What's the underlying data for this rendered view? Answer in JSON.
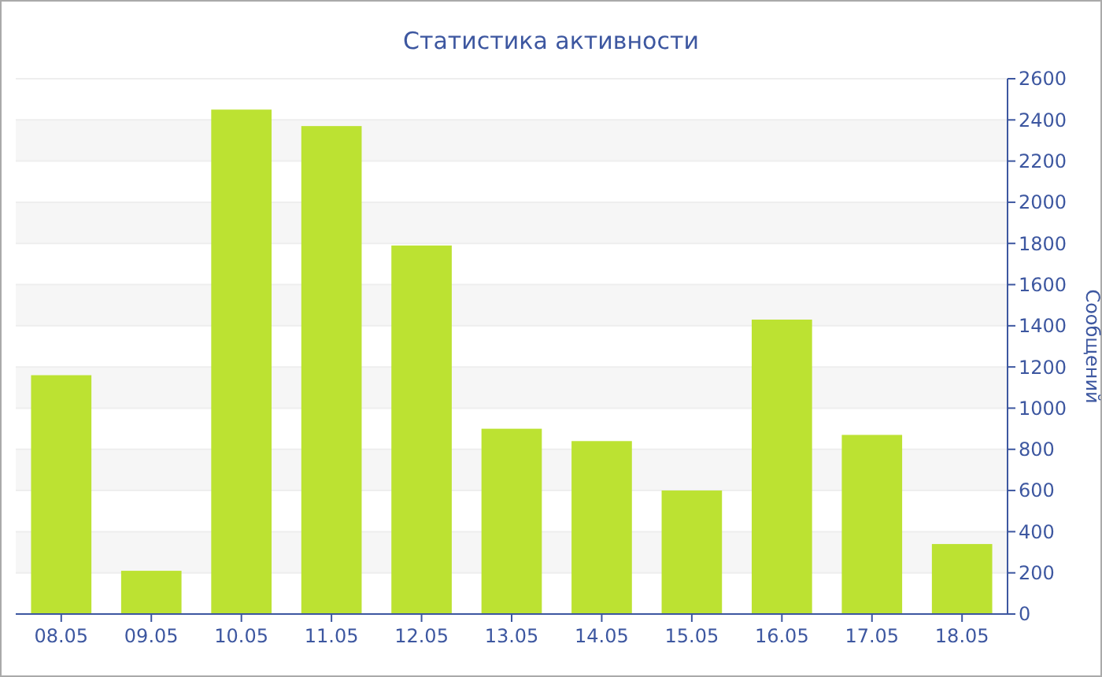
{
  "chart_data": {
    "type": "bar",
    "title": "Статистика активности",
    "ylabel": "Сообщений",
    "categories": [
      "08.05",
      "09.05",
      "10.05",
      "11.05",
      "12.05",
      "13.05",
      "14.05",
      "15.05",
      "16.05",
      "17.05",
      "18.05"
    ],
    "values": [
      1160,
      210,
      2450,
      2370,
      1790,
      900,
      840,
      600,
      1430,
      870,
      340
    ],
    "color": "#bce232",
    "ylim": [
      0,
      2600
    ],
    "yticks": [
      0,
      200,
      400,
      600,
      800,
      1000,
      1200,
      1400,
      1600,
      1800,
      2000,
      2200,
      2400,
      2600
    ],
    "grid": "y"
  }
}
